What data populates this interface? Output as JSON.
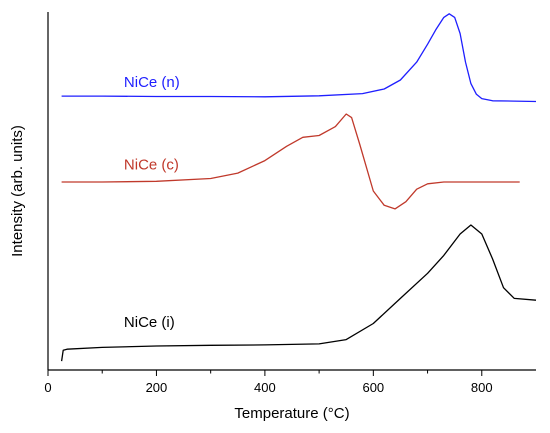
{
  "chart_data": {
    "type": "line",
    "title": "",
    "xlabel": "Temperature (°C)",
    "ylabel": "Intensity (arb. units)",
    "xlim": [
      0,
      900
    ],
    "xticks": [
      0,
      200,
      400,
      600,
      800
    ],
    "ylim": [
      0,
      100
    ],
    "y_ticks_labeled": false,
    "grid": false,
    "series": [
      {
        "name": "NiCe (n)",
        "color": "#1f1fff",
        "x": [
          25,
          100,
          200,
          300,
          400,
          500,
          580,
          620,
          650,
          680,
          700,
          715,
          730,
          740,
          750,
          760,
          770,
          780,
          790,
          800,
          820,
          860,
          900
        ],
        "y": [
          76.5,
          76.5,
          76.4,
          76.4,
          76.3,
          76.6,
          77.2,
          78.5,
          81,
          86,
          91,
          95,
          98.5,
          99.5,
          98.5,
          94,
          86,
          80,
          77,
          75.8,
          75.2,
          75.1,
          75.0
        ]
      },
      {
        "name": "NiCe (c)",
        "color": "#c0392b",
        "x": [
          25,
          100,
          200,
          300,
          350,
          400,
          440,
          470,
          500,
          530,
          550,
          560,
          575,
          600,
          620,
          640,
          660,
          680,
          700,
          730,
          760,
          800,
          870
        ],
        "y": [
          52.5,
          52.5,
          52.7,
          53.5,
          55,
          58.5,
          62.5,
          65,
          65.5,
          68,
          71.5,
          70.5,
          63,
          50,
          46,
          45,
          47,
          50.5,
          52,
          52.5,
          52.5,
          52.5,
          52.5
        ]
      },
      {
        "name": "NiCe (i)",
        "color": "#000000",
        "x": [
          25,
          28,
          35,
          100,
          200,
          300,
          400,
          500,
          550,
          600,
          650,
          700,
          730,
          760,
          780,
          800,
          820,
          840,
          860,
          900
        ],
        "y": [
          2.5,
          5.5,
          5.8,
          6.3,
          6.7,
          6.9,
          7.0,
          7.3,
          8.5,
          13,
          20,
          27,
          32,
          38,
          40.5,
          38,
          31,
          23,
          20,
          19.5
        ]
      }
    ],
    "labels": [
      {
        "text": "NiCe (n)",
        "x": 140,
        "y": 79,
        "color": "#1f1fff"
      },
      {
        "text": "NiCe (c)",
        "x": 140,
        "y": 56,
        "color": "#c0392b"
      },
      {
        "text": "NiCe (i)",
        "x": 140,
        "y": 12,
        "color": "#000000"
      }
    ]
  }
}
